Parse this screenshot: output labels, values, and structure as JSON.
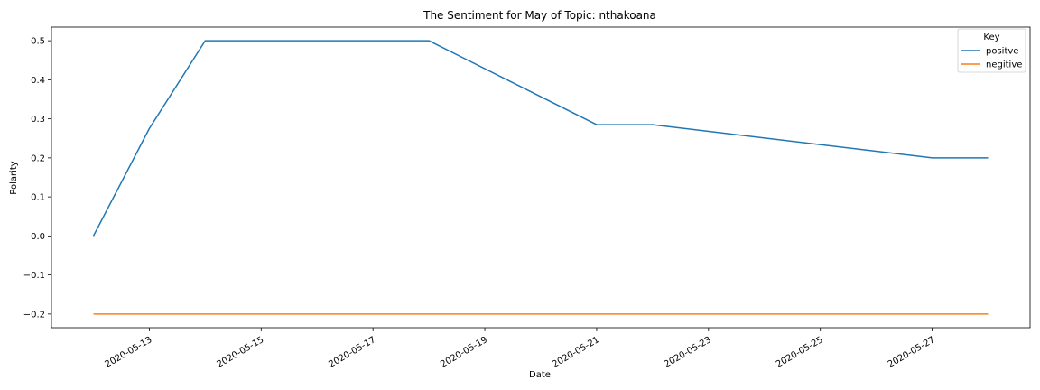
{
  "chart_data": {
    "type": "line",
    "title": "The Sentiment for May of Topic: nthakoana",
    "xlabel": "Date",
    "ylabel": "Polarity",
    "x": [
      "2020-05-12",
      "2020-05-13",
      "2020-05-14",
      "2020-05-18",
      "2020-05-21",
      "2020-05-22",
      "2020-05-27",
      "2020-05-28"
    ],
    "series": [
      {
        "name": "positve",
        "color": "#1f77b4",
        "values": [
          0.0,
          0.275,
          0.5,
          0.5,
          0.285,
          0.285,
          0.2,
          0.2
        ]
      },
      {
        "name": "negitive",
        "color": "#ff7f0e",
        "values": [
          -0.2,
          -0.2,
          -0.2,
          -0.2,
          -0.2,
          -0.2,
          -0.2,
          -0.2
        ]
      }
    ],
    "x_range": [
      "2020-05-11 06:00",
      "2020-05-28 18:00"
    ],
    "ylim": [
      -0.235,
      0.535
    ],
    "x_ticks": [
      "2020-05-13",
      "2020-05-15",
      "2020-05-17",
      "2020-05-19",
      "2020-05-21",
      "2020-05-23",
      "2020-05-25",
      "2020-05-27"
    ],
    "y_ticks": [
      -0.2,
      -0.1,
      0.0,
      0.1,
      0.2,
      0.3,
      0.4,
      0.5
    ],
    "y_tick_labels": [
      "−0.2",
      "−0.1",
      "0.0",
      "0.1",
      "0.2",
      "0.3",
      "0.4",
      "0.5"
    ],
    "legend": {
      "title": "Key",
      "position": "top-right"
    },
    "grid": false
  }
}
